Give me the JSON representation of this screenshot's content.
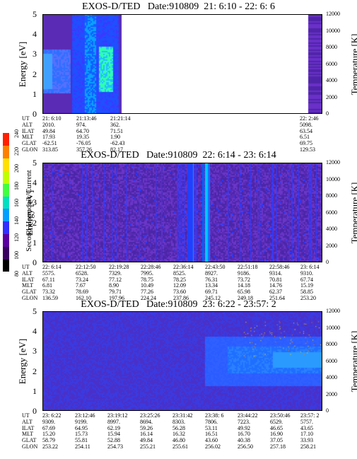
{
  "panels": [
    {
      "title": "EXOS-D/TED   Date:910809  21: 6:10 - 22: 6: 6",
      "ylabel": "Energy [eV]",
      "y2label": "Temperature [K]",
      "rows": [
        "UT",
        "ALT",
        "ILAT",
        "MLT",
        "GLAT",
        "GLON"
      ],
      "cols": [
        [
          "21: 6:10",
          "2010.",
          "49.84",
          "17.93",
          "-62.51",
          "313.85"
        ],
        [
          "21:13:46",
          "974.",
          "64.70",
          "19.35",
          "-76.05",
          "357.26"
        ],
        [
          "21:21:14",
          "362.",
          "71.51",
          "1.90",
          "-62.43",
          "82.17"
        ],
        [
          "22: 2:46",
          "5098.",
          "63.54",
          "6.51",
          "69.75",
          "129.53"
        ]
      ]
    },
    {
      "title": "EXOS-D/TED   Date:910809  22: 6:14 - 23: 6:14",
      "ylabel": "Energy [eV]",
      "y2label": "Temperature [K]",
      "rows": [
        "UT",
        "ALT",
        "ILAT",
        "MLT",
        "GLAT",
        "GLON"
      ],
      "cols": [
        [
          "22: 6:14",
          "5575.",
          "67.11",
          "6.81",
          "73.32",
          "136.59"
        ],
        [
          "22:12:50",
          "6528.",
          "73.24",
          "7.67",
          "78.69",
          "162.10"
        ],
        [
          "22:19:28",
          "7329.",
          "77.12",
          "8.90",
          "79.71",
          "197.96"
        ],
        [
          "22:28:46",
          "7995.",
          "78.75",
          "10.49",
          "77.26",
          "224.24"
        ],
        [
          "22:36:14",
          "8525.",
          "78.25",
          "12.09",
          "73.60",
          "237.86"
        ],
        [
          "22:43:50",
          "8927.",
          "76.31",
          "13.34",
          "69.71",
          "245.12"
        ],
        [
          "22:51:18",
          "9186.",
          "73.72",
          "14.18",
          "65.98",
          "249.18"
        ],
        [
          "22:58:46",
          "9314.",
          "70.81",
          "14.76",
          "62.37",
          "251.64"
        ],
        [
          "23: 6:14",
          "9310.",
          "67.74",
          "15.19",
          "58.85",
          "253.20"
        ]
      ]
    },
    {
      "title": "EXOS-D/TED   Date:910809  23: 6:22 - 23:57: 2",
      "ylabel": "Energy [eV]",
      "y2label": "Temperature [K]",
      "rows": [
        "UT",
        "ALT",
        "ILAT",
        "MLT",
        "GLAT",
        "GLON"
      ],
      "cols": [
        [
          "23: 6:22",
          "9309.",
          "67.69",
          "15.20",
          "58.79",
          "253.22"
        ],
        [
          "23:12:46",
          "9199.",
          "64.95",
          "15.73",
          "55.81",
          "254.11"
        ],
        [
          "23:19:12",
          "8997.",
          "62.19",
          "15.94",
          "52.88",
          "254.73"
        ],
        [
          "23:25:26",
          "8694.",
          "59.26",
          "16.14",
          "49.84",
          "255.21"
        ],
        [
          "23:31:42",
          "8303.",
          "56.28",
          "16.32",
          "46.80",
          "255.61"
        ],
        [
          "23:38: 6",
          "7806.",
          "53.11",
          "16.51",
          "43.60",
          "256.02"
        ],
        [
          "23:44:22",
          "7223.",
          "49.92",
          "16.70",
          "40.38",
          "256.50"
        ],
        [
          "23:50:46",
          "6529.",
          "46.65",
          "16.90",
          "37.05",
          "257.18"
        ],
        [
          "23:57: 2",
          "5757.",
          "43.65",
          "17.10",
          "33.93",
          "258.21"
        ]
      ]
    }
  ],
  "colorbar": {
    "label": "Second Harmonic Current",
    "ticks": [
      "80",
      "100",
      "120",
      "140",
      "160",
      "180",
      "200",
      "220",
      "240"
    ],
    "colors": [
      "#000000",
      "#3a0060",
      "#5a00a0",
      "#3030ff",
      "#00a0ff",
      "#00e0c0",
      "#40ff40",
      "#c0ff00",
      "#ffe000",
      "#ff8000",
      "#ff2000"
    ]
  },
  "chart_data": [
    {
      "type": "heatmap",
      "title": "EXOS-D/TED   Date:910809  21: 6:10 - 22: 6: 6",
      "ylabel": "Energy [eV]",
      "y2label": "Temperature [K]",
      "ylim": [
        0,
        5
      ],
      "y2lim": [
        0,
        12000
      ],
      "yticks": [
        "0",
        "1",
        "2",
        "3",
        "4",
        "5"
      ],
      "y2ticks": [
        "0",
        "2000",
        "4000",
        "6000",
        "8000",
        "10000",
        "12000"
      ],
      "x_ticks": [
        "21: 6:10",
        "21:13:46",
        "21:21:14",
        "22: 2:46"
      ]
    },
    {
      "type": "heatmap",
      "title": "EXOS-D/TED   Date:910809  22: 6:14 - 23: 6:14",
      "ylabel": "Energy [eV]",
      "y2label": "Temperature [K]",
      "ylim": [
        0,
        5
      ],
      "y2lim": [
        0,
        12000
      ],
      "yticks": [
        "0",
        "1",
        "2",
        "3",
        "4",
        "5"
      ],
      "y2ticks": [
        "0",
        "2000",
        "4000",
        "6000",
        "8000",
        "10000",
        "12000"
      ],
      "x_ticks": [
        "22: 6:14",
        "22:12:50",
        "22:19:28",
        "22:28:46",
        "22:36:14",
        "22:43:50",
        "22:51:18",
        "22:58:46",
        "23: 6:14"
      ]
    },
    {
      "type": "heatmap",
      "title": "EXOS-D/TED   Date:910809  23: 6:22 - 23:57: 2",
      "ylabel": "Energy [eV]",
      "y2label": "Temperature [K]",
      "ylim": [
        0,
        5
      ],
      "y2lim": [
        0,
        12000
      ],
      "yticks": [
        "0",
        "1",
        "2",
        "3",
        "4",
        "5"
      ],
      "y2ticks": [
        "0",
        "2000",
        "4000",
        "6000",
        "8000",
        "10000",
        "12000"
      ],
      "x_ticks": [
        "23: 6:22",
        "23:12:46",
        "23:19:12",
        "23:25:26",
        "23:31:42",
        "23:38: 6",
        "23:44:22",
        "23:50:46",
        "23:57: 2"
      ]
    }
  ]
}
